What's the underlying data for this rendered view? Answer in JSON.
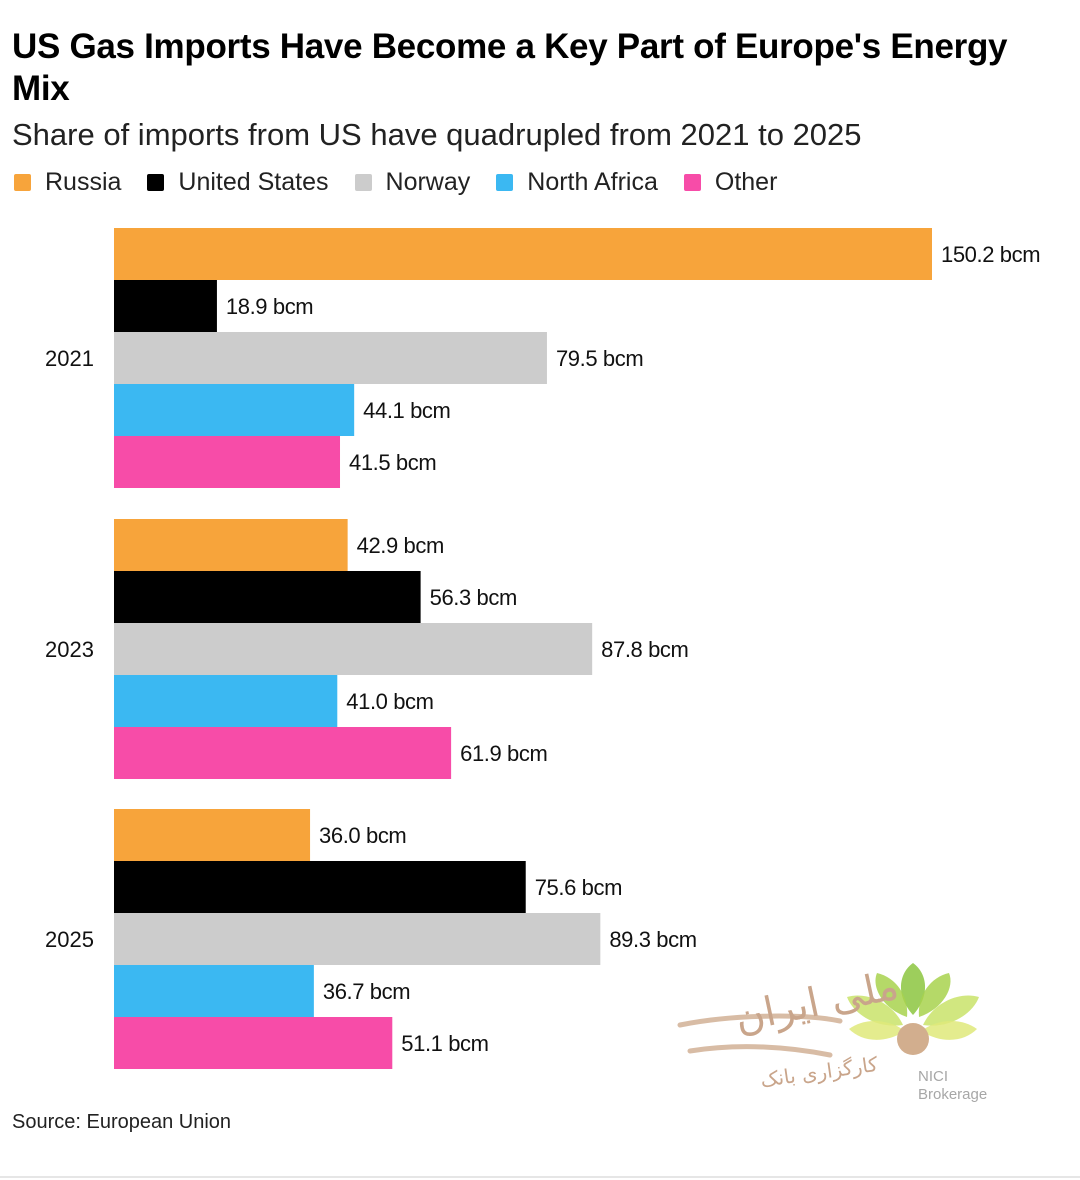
{
  "chart_data": {
    "type": "bar",
    "orientation": "horizontal",
    "title": "US Gas Imports Have Become a Key Part of Europe's Energy Mix",
    "subtitle": "Share of imports from US have quadrupled from 2021 to 2025",
    "categories": [
      "2021",
      "2023",
      "2025"
    ],
    "unit": "bcm",
    "series": [
      {
        "name": "Russia",
        "color": "#f7a43b",
        "values": [
          150.2,
          42.9,
          36.0
        ],
        "labels": [
          "150.2 bcm",
          "42.9 bcm",
          "36.0 bcm"
        ]
      },
      {
        "name": "United States",
        "color": "#000000",
        "values": [
          18.9,
          56.3,
          75.6
        ],
        "labels": [
          "18.9 bcm",
          "56.3 bcm",
          "75.6 bcm"
        ]
      },
      {
        "name": "Norway",
        "color": "#cccccc",
        "values": [
          79.5,
          87.8,
          89.3
        ],
        "labels": [
          "79.5 bcm",
          "87.8 bcm",
          "89.3 bcm"
        ]
      },
      {
        "name": "North Africa",
        "color": "#3bb8f2",
        "values": [
          44.1,
          41.0,
          36.7
        ],
        "labels": [
          "44.1 bcm",
          "41.0 bcm",
          "36.7 bcm"
        ]
      },
      {
        "name": "Other",
        "color": "#f74ca8",
        "values": [
          41.5,
          61.9,
          51.1
        ],
        "labels": [
          "41.5 bcm",
          "61.9 bcm",
          "51.1 bcm"
        ]
      }
    ],
    "xlim": [
      0,
      150.2
    ],
    "grid": false,
    "legend_position": "top-left",
    "source": "Source: European Union"
  },
  "watermark": {
    "brand": "NICI",
    "brand_sub": "Brokerage",
    "persian_main": "ملی ایران",
    "persian_sub": "کارگزاری بانک"
  }
}
